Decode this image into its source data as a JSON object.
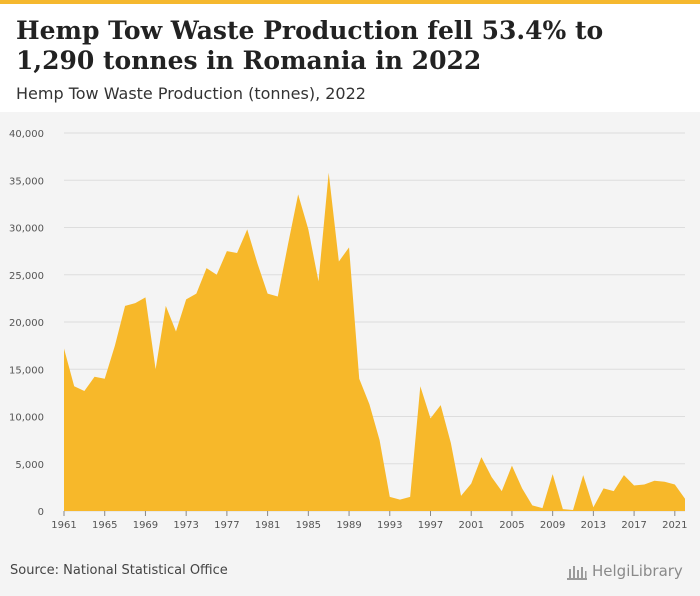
{
  "header": {
    "title": "Hemp Tow Waste Production fell 53.4% to 1,290 tonnes in Romania in 2022",
    "subtitle": "Hemp Tow Waste Production (tonnes), 2022"
  },
  "footer": {
    "source": "Source: National Statistical Office",
    "logo_text": "HelgiLibrary"
  },
  "colors": {
    "area_fill": "#f7b82a",
    "accent_bar": "#f5b82e",
    "grid": "#dddddd"
  },
  "chart_data": {
    "type": "area",
    "title": "Hemp Tow Waste Production fell 53.4% to 1,290 tonnes in Romania in 2022",
    "subtitle": "Hemp Tow Waste Production (tonnes), 2022",
    "xlabel": "",
    "ylabel": "",
    "ylim": [
      0,
      40000
    ],
    "xlim": [
      1961,
      2022
    ],
    "grid": true,
    "y_ticks": [
      0,
      5000,
      10000,
      15000,
      20000,
      25000,
      30000,
      35000,
      40000
    ],
    "y_tick_labels": [
      "0",
      "5,000",
      "10,000",
      "15,000",
      "20,000",
      "25,000",
      "30,000",
      "35,000",
      "40,000"
    ],
    "x_ticks": [
      1961,
      1965,
      1969,
      1973,
      1977,
      1981,
      1985,
      1989,
      1993,
      1997,
      2001,
      2005,
      2009,
      2013,
      2017,
      2021
    ],
    "x_tick_labels": [
      "1961",
      "1965",
      "1969",
      "1973",
      "1977",
      "1981",
      "1985",
      "1989",
      "1993",
      "1997",
      "2001",
      "2005",
      "2009",
      "2013",
      "2017",
      "2021"
    ],
    "x": [
      1961,
      1962,
      1963,
      1964,
      1965,
      1966,
      1967,
      1968,
      1969,
      1970,
      1971,
      1972,
      1973,
      1974,
      1975,
      1976,
      1977,
      1978,
      1979,
      1980,
      1981,
      1982,
      1983,
      1984,
      1985,
      1986,
      1987,
      1988,
      1989,
      1990,
      1991,
      1992,
      1993,
      1994,
      1995,
      1996,
      1997,
      1998,
      1999,
      2000,
      2001,
      2002,
      2003,
      2004,
      2005,
      2006,
      2007,
      2008,
      2009,
      2010,
      2011,
      2012,
      2013,
      2014,
      2015,
      2016,
      2017,
      2018,
      2019,
      2020,
      2021,
      2022
    ],
    "series": [
      {
        "values": [
          17200,
          13200,
          12700,
          14200,
          14000,
          17500,
          21700,
          22000,
          22600,
          15000,
          21700,
          19000,
          22400,
          23000,
          25700,
          25000,
          27500,
          27300,
          29800,
          26200,
          23000,
          22700,
          28200,
          33500,
          29800,
          24300,
          35800,
          26400,
          27900,
          14000,
          11300,
          7500,
          1500,
          1200,
          1500,
          13200,
          9800,
          11200,
          7200,
          1600,
          2900,
          5700,
          3600,
          2100,
          4800,
          2400,
          600,
          300,
          3900,
          200,
          100,
          3800,
          400,
          2400,
          2100,
          3800,
          2700,
          2800,
          3200,
          3100,
          2800,
          1290
        ]
      }
    ]
  }
}
